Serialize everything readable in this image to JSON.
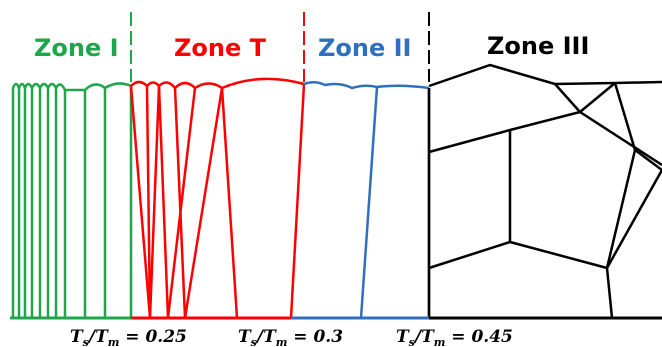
{
  "zones": [
    {
      "id": "zone-1",
      "label": "Zone I",
      "color": "#1fa64a"
    },
    {
      "id": "zone-t",
      "label": "Zone T",
      "color": "#ff0000"
    },
    {
      "id": "zone-2",
      "label": "Zone II",
      "color": "#2f6fbf"
    },
    {
      "id": "zone-3",
      "label": "Zone III",
      "color": "#000000"
    }
  ],
  "ratios": [
    {
      "prefix": "T",
      "sub_s": "s",
      "slash": "/T",
      "sub_m": "m",
      "value": " = 0.25"
    },
    {
      "prefix": "T",
      "sub_s": "s",
      "slash": "/T",
      "sub_m": "m",
      "value": " = 0.3"
    },
    {
      "prefix": "T",
      "sub_s": "s",
      "slash": "/T",
      "sub_m": "m",
      "value": " = 0.45"
    }
  ],
  "colors": {
    "zone1": "#1fa64a",
    "zoneT": "#ff0000",
    "zone2": "#2f6fbf",
    "zone3": "#000000"
  }
}
